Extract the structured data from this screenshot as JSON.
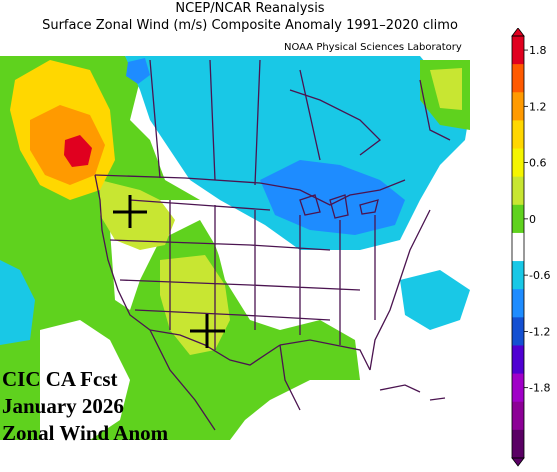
{
  "header": {
    "title_line1": "NCEP/NCAR Reanalysis",
    "title_line2": "Surface Zonal Wind (m/s) Composite Anomaly 1991–2020 climo",
    "credit": "NOAA Physical Sciences Laboratory"
  },
  "overlay": {
    "line1": "CIC CA Fcst",
    "line2": "January 2026",
    "line3": "Zonal Wind Anom"
  },
  "colorbar": {
    "labels": [
      "1.8",
      "1.2",
      "0.6",
      "0",
      "-0.6",
      "-1.2",
      "-1.8"
    ],
    "colors": [
      "#e0001f",
      "#ff5a00",
      "#ff9a00",
      "#ffd700",
      "#f5f500",
      "#c8e632",
      "#5fd21e",
      "#ffffff",
      "#19c8e6",
      "#1e8cff",
      "#1450d2",
      "#5000d2",
      "#a000c8",
      "#8c0096",
      "#5a0064"
    ]
  },
  "map": {
    "markers": [
      "cross",
      "cross"
    ],
    "palette": {
      "red": "#e0001f",
      "orange": "#ff9a00",
      "yellow": "#ffd700",
      "lightgreen": "#c8e632",
      "green": "#5fd21e",
      "cyan": "#19c8e6",
      "blue": "#1e8cff",
      "boundary": "#4b1450"
    }
  }
}
